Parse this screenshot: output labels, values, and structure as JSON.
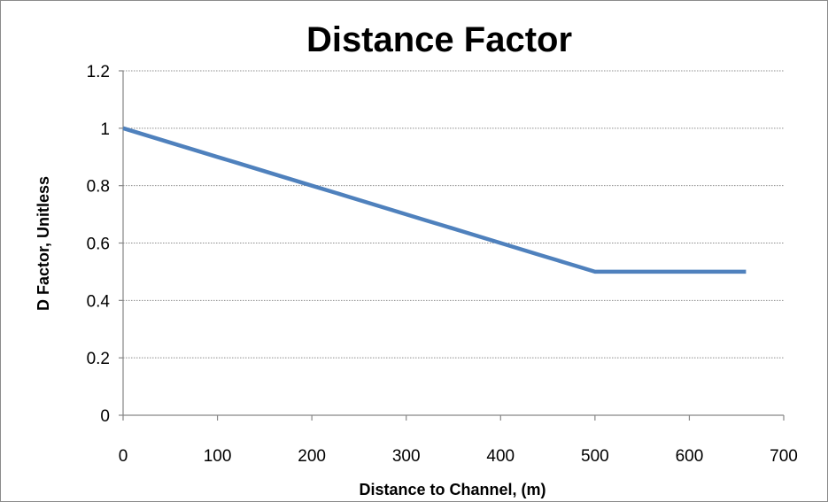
{
  "chart_data": {
    "type": "line",
    "title": "Distance Factor",
    "xlabel": "Distance to Channel, (m)",
    "ylabel": "D Factor,  Unitless",
    "xlim": [
      0,
      700
    ],
    "ylim": [
      0,
      1.2
    ],
    "x_ticks": [
      "0",
      "100",
      "200",
      "300",
      "400",
      "500",
      "600",
      "700"
    ],
    "y_ticks": [
      "0",
      "0.2",
      "0.4",
      "0.6",
      "0.8",
      "1",
      "1.2"
    ],
    "grid": "horizontal dotted",
    "legend": "none",
    "series": [
      {
        "color": "#4f81bd",
        "x": [
          0,
          20,
          40,
          60,
          80,
          100,
          120,
          140,
          160,
          180,
          200,
          220,
          240,
          260,
          280,
          300,
          320,
          340,
          360,
          380,
          400,
          420,
          440,
          460,
          480,
          500,
          520,
          540,
          560,
          580,
          600,
          620,
          640,
          660
        ],
        "y": [
          1.0,
          0.98,
          0.96,
          0.94,
          0.92,
          0.9,
          0.88,
          0.86,
          0.84,
          0.82,
          0.8,
          0.78,
          0.76,
          0.74,
          0.72,
          0.7,
          0.68,
          0.66,
          0.64,
          0.62,
          0.6,
          0.58,
          0.56,
          0.54,
          0.52,
          0.5,
          0.5,
          0.5,
          0.5,
          0.5,
          0.5,
          0.5,
          0.5,
          0.5
        ]
      }
    ]
  }
}
